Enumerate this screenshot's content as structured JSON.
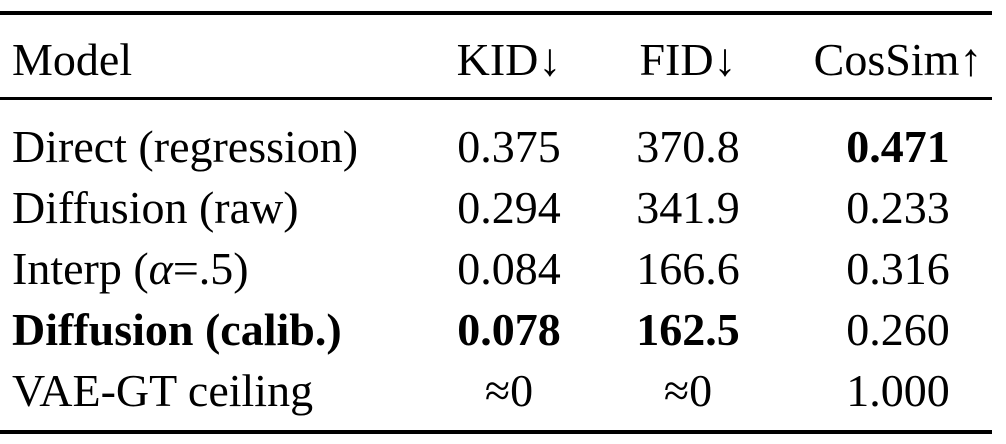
{
  "table": {
    "headers": {
      "model": "Model",
      "kid": "KID↓",
      "fid": "FID↓",
      "cossim": "CosSim↑"
    },
    "rows": [
      {
        "model": "Direct (regression)",
        "kid": "0.375",
        "fid": "370.8",
        "cossim": "0.471",
        "bold_model": false,
        "bold_kid": false,
        "bold_fid": false,
        "bold_cossim": true
      },
      {
        "model": "Diffusion (raw)",
        "kid": "0.294",
        "fid": "341.9",
        "cossim": "0.233",
        "bold_model": false,
        "bold_kid": false,
        "bold_fid": false,
        "bold_cossim": false
      },
      {
        "model_prefix": "Interp (",
        "model_alpha": "α",
        "model_suffix": "=.5)",
        "kid": "0.084",
        "fid": "166.6",
        "cossim": "0.316",
        "bold_model": false,
        "bold_kid": false,
        "bold_fid": false,
        "bold_cossim": false
      },
      {
        "model": "Diffusion (calib.)",
        "kid": "0.078",
        "fid": "162.5",
        "cossim": "0.260",
        "bold_model": true,
        "bold_kid": true,
        "bold_fid": true,
        "bold_cossim": false
      },
      {
        "model": "VAE-GT ceiling",
        "kid": "≈0",
        "fid": "≈0",
        "cossim": "1.000",
        "bold_model": false,
        "bold_kid": false,
        "bold_fid": false,
        "bold_cossim": false
      }
    ]
  }
}
